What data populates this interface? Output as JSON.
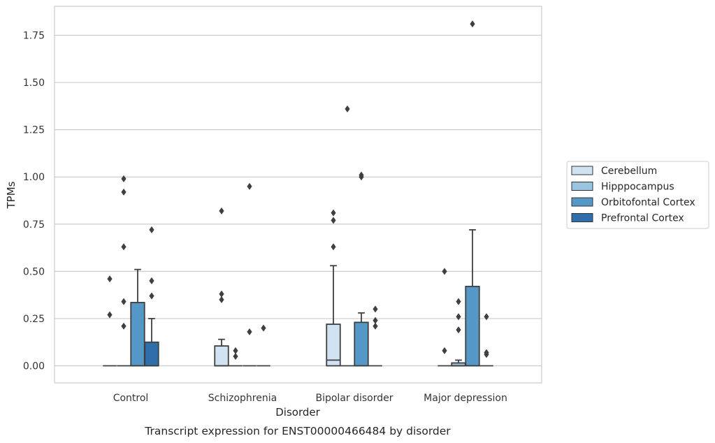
{
  "chart_data": {
    "type": "box",
    "caption": "Transcript expression for ENST00000466484 by disorder",
    "xlabel": "Disorder",
    "ylabel": "TPMs",
    "ylim": [
      -0.09,
      1.9
    ],
    "yticks": [
      "0.00",
      "0.25",
      "0.50",
      "0.75",
      "1.00",
      "1.25",
      "1.50",
      "1.75"
    ],
    "ytick_values": [
      0,
      0.25,
      0.5,
      0.75,
      1.0,
      1.25,
      1.5,
      1.75
    ],
    "grid": "horizontal",
    "legend_placement": "right",
    "categories": [
      "Control",
      "Schizophrenia",
      "Bipolar disorder",
      "Major depression"
    ],
    "series": [
      {
        "name": "Cerebellum",
        "color": "#d1e2f2",
        "boxes": [
          {
            "q1": 0,
            "median": 0,
            "q3": 0,
            "whisker_low": 0,
            "whisker_high": 0,
            "outliers": [
              0.27,
              0.46
            ]
          },
          {
            "q1": 0,
            "median": 0,
            "q3": 0.105,
            "whisker_low": 0,
            "whisker_high": 0.14,
            "outliers": [
              0.35,
              0.38,
              0.82
            ]
          },
          {
            "q1": 0,
            "median": 0.03,
            "q3": 0.22,
            "whisker_low": 0,
            "whisker_high": 0.53,
            "outliers": [
              0.63,
              0.77,
              0.81
            ]
          },
          {
            "q1": 0,
            "median": 0,
            "q3": 0,
            "whisker_low": 0,
            "whisker_high": 0,
            "outliers": [
              0.08,
              0.5
            ]
          }
        ]
      },
      {
        "name": "Hipppocampus",
        "color": "#9ac4df",
        "boxes": [
          {
            "q1": 0,
            "median": 0,
            "q3": 0,
            "whisker_low": 0,
            "whisker_high": 0,
            "outliers": [
              0.21,
              0.34,
              0.63,
              0.92,
              0.99
            ]
          },
          {
            "q1": 0,
            "median": 0,
            "q3": 0,
            "whisker_low": 0,
            "whisker_high": 0,
            "outliers": [
              0.05,
              0.08
            ]
          },
          {
            "q1": 0,
            "median": 0,
            "q3": 0,
            "whisker_low": 0,
            "whisker_high": 0,
            "outliers": [
              1.36
            ]
          },
          {
            "q1": 0,
            "median": 0,
            "q3": 0.015,
            "whisker_low": 0,
            "whisker_high": 0.03,
            "outliers": [
              0.19,
              0.26,
              0.34
            ]
          }
        ]
      },
      {
        "name": "Orbitofontal Cortex",
        "color": "#5597c6",
        "boxes": [
          {
            "q1": 0,
            "median": 0,
            "q3": 0.335,
            "whisker_low": 0,
            "whisker_high": 0.51,
            "outliers": []
          },
          {
            "q1": 0,
            "median": 0,
            "q3": 0,
            "whisker_low": 0,
            "whisker_high": 0,
            "outliers": [
              0.18,
              0.95
            ]
          },
          {
            "q1": 0,
            "median": 0,
            "q3": 0.23,
            "whisker_low": 0,
            "whisker_high": 0.28,
            "outliers": [
              1.0,
              1.01
            ]
          },
          {
            "q1": 0,
            "median": 0,
            "q3": 0.42,
            "whisker_low": 0,
            "whisker_high": 0.72,
            "outliers": [
              1.81
            ]
          }
        ]
      },
      {
        "name": "Prefrontal Cortex",
        "color": "#2e6fab",
        "boxes": [
          {
            "q1": 0,
            "median": 0,
            "q3": 0.125,
            "whisker_low": 0,
            "whisker_high": 0.25,
            "outliers": [
              0.37,
              0.45,
              0.72
            ]
          },
          {
            "q1": 0,
            "median": 0,
            "q3": 0,
            "whisker_low": 0,
            "whisker_high": 0,
            "outliers": [
              0.2
            ]
          },
          {
            "q1": 0,
            "median": 0,
            "q3": 0,
            "whisker_low": 0,
            "whisker_high": 0,
            "outliers": [
              0.21,
              0.24,
              0.3
            ]
          },
          {
            "q1": 0,
            "median": 0,
            "q3": 0,
            "whisker_low": 0,
            "whisker_high": 0,
            "outliers": [
              0.06,
              0.07,
              0.26
            ]
          }
        ]
      }
    ]
  }
}
